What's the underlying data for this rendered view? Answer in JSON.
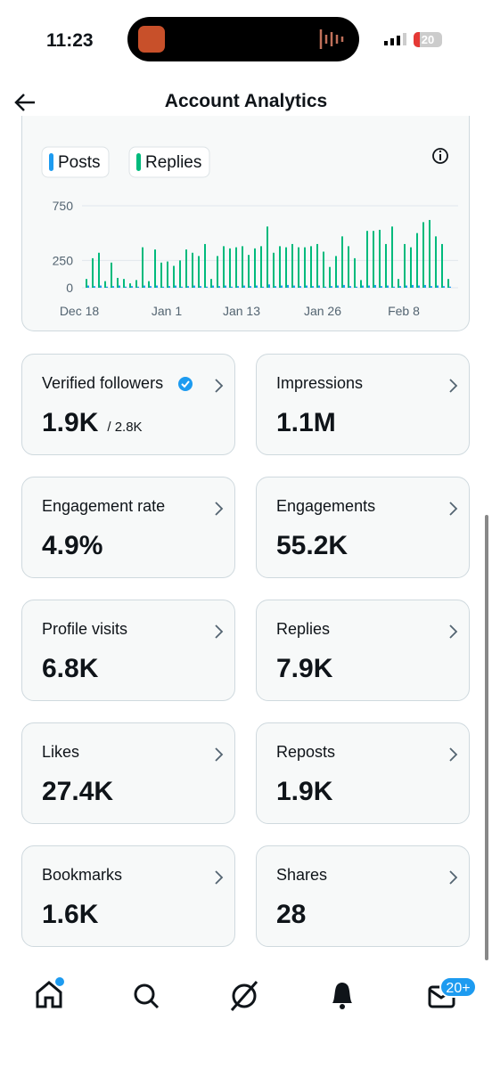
{
  "status_bar": {
    "time": "11:23",
    "battery": "20"
  },
  "header": {
    "title": "Account Analytics"
  },
  "chart_data": {
    "type": "bar",
    "categories": [
      "Dec 18",
      null,
      null,
      null,
      null,
      null,
      null,
      null,
      null,
      null,
      null,
      null,
      null,
      null,
      "Jan 1",
      null,
      null,
      null,
      null,
      null,
      null,
      null,
      null,
      null,
      null,
      null,
      "Jan 13",
      null,
      null,
      null,
      null,
      null,
      null,
      null,
      null,
      null,
      null,
      null,
      null,
      "Jan 26",
      null,
      null,
      null,
      null,
      null,
      null,
      null,
      null,
      null,
      null,
      null,
      null,
      "Feb 8",
      null,
      null,
      null,
      null,
      null,
      null
    ],
    "series": [
      {
        "name": "Posts",
        "color": "#1d9bf0",
        "values": [
          20,
          15,
          20,
          10,
          15,
          20,
          10,
          15,
          10,
          20,
          15,
          20,
          10,
          15,
          20,
          10,
          15,
          20,
          15,
          10,
          20,
          15,
          20,
          10,
          15,
          20,
          15,
          20,
          10,
          30,
          15,
          20,
          25,
          20,
          15,
          20,
          15,
          20,
          10,
          15,
          20,
          25,
          15,
          10,
          20,
          20,
          25,
          15,
          20,
          10,
          15,
          20,
          25,
          20,
          25,
          15,
          20,
          15,
          10
        ]
      },
      {
        "name": "Replies",
        "color": "#00ba7c",
        "values": [
          80,
          270,
          320,
          60,
          230,
          90,
          80,
          40,
          70,
          370,
          60,
          350,
          230,
          240,
          200,
          250,
          350,
          320,
          290,
          400,
          80,
          290,
          380,
          360,
          370,
          380,
          300,
          360,
          380,
          560,
          320,
          380,
          370,
          400,
          370,
          370,
          380,
          400,
          330,
          190,
          290,
          470,
          380,
          270,
          70,
          520,
          520,
          530,
          400,
          560,
          80,
          400,
          370,
          500,
          600,
          620,
          470,
          400,
          80
        ]
      }
    ],
    "ylim": [
      0,
      750
    ],
    "yticks": [
      0,
      250,
      750
    ],
    "grid": true
  },
  "cards": [
    {
      "label": "Verified followers",
      "value": "1.9K",
      "sub": "/ 2.8K"
    },
    {
      "label": "Impressions",
      "value": "1.1M"
    },
    {
      "label": "Engagement rate",
      "value": "4.9%"
    },
    {
      "label": "Engagements",
      "value": "55.2K"
    },
    {
      "label": "Profile visits",
      "value": "6.8K"
    },
    {
      "label": "Replies",
      "value": "7.9K"
    },
    {
      "label": "Likes",
      "value": "27.4K"
    },
    {
      "label": "Reposts",
      "value": "1.9K"
    },
    {
      "label": "Bookmarks",
      "value": "1.6K"
    },
    {
      "label": "Shares",
      "value": "28"
    }
  ],
  "nav": {
    "badge": "20+"
  }
}
